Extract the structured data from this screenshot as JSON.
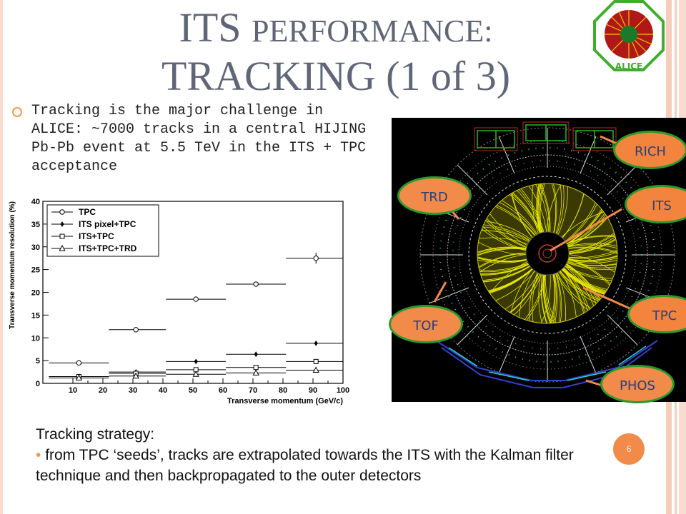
{
  "slide": {
    "title_line1_first": "ITS",
    "title_line1_rest": "PERFORMANCE:",
    "title_line2": "TRACKING (1 of 3)",
    "bullet": "Tracking is the major challenge in ALICE: ~7000 tracks in a central HIJING Pb-Pb event at 5.5 TeV in the ITS + TPC acceptance",
    "bottom_heading": "Tracking strategy:",
    "bottom_bullet": "from TPC ‘seeds’, tracks are extrapolated towards the ITS with the Kalman filter technique and then backpropagated to the outer detectors",
    "page_number": "6",
    "logo_text": "ALICE",
    "colors": {
      "title": "#5f6678",
      "accent": "#f28a4a",
      "stripe": "#f6cdb9"
    }
  },
  "detector_labels": {
    "rich": "RICH",
    "its": "ITS",
    "trd": "TRD",
    "tof": "TOF",
    "tpc": "TPC",
    "phos": "PHOS"
  },
  "chart_data": {
    "type": "scatter",
    "xlabel": "Transverse momentum (GeV/c)",
    "ylabel": "Transverse momentum resolution (%)",
    "xlim": [
      0,
      100
    ],
    "ylim": [
      0,
      40
    ],
    "xticks": [
      10,
      20,
      30,
      40,
      50,
      60,
      70,
      80,
      90,
      100
    ],
    "yticks": [
      0,
      5,
      10,
      15,
      20,
      25,
      30,
      35,
      40
    ],
    "legend_position": "top-left",
    "series": [
      {
        "name": "TPC",
        "marker": "circle",
        "points": [
          {
            "x": 12,
            "y": 4.5,
            "xlo": 2,
            "xhi": 22
          },
          {
            "x": 31,
            "y": 11.8,
            "xlo": 22,
            "xhi": 41
          },
          {
            "x": 51,
            "y": 18.5,
            "xlo": 41,
            "xhi": 61
          },
          {
            "x": 71,
            "y": 21.8,
            "xlo": 61,
            "xhi": 81
          },
          {
            "x": 91,
            "y": 27.5,
            "xlo": 81,
            "xhi": 100,
            "err": 1.2
          }
        ]
      },
      {
        "name": "ITS pixel+TPC",
        "marker": "diamond",
        "points": [
          {
            "x": 12,
            "y": 1.5,
            "xlo": 2,
            "xhi": 22
          },
          {
            "x": 31,
            "y": 2.5,
            "xlo": 22,
            "xhi": 41
          },
          {
            "x": 51,
            "y": 4.8,
            "xlo": 41,
            "xhi": 61
          },
          {
            "x": 71,
            "y": 6.4,
            "xlo": 61,
            "xhi": 81
          },
          {
            "x": 91,
            "y": 8.8,
            "xlo": 81,
            "xhi": 100
          }
        ]
      },
      {
        "name": "ITS+TPC",
        "marker": "square",
        "points": [
          {
            "x": 12,
            "y": 1.5,
            "xlo": 2,
            "xhi": 22
          },
          {
            "x": 31,
            "y": 2.2,
            "xlo": 22,
            "xhi": 41
          },
          {
            "x": 51,
            "y": 3.0,
            "xlo": 41,
            "xhi": 61
          },
          {
            "x": 71,
            "y": 3.5,
            "xlo": 61,
            "xhi": 81
          },
          {
            "x": 91,
            "y": 4.8,
            "xlo": 81,
            "xhi": 100
          }
        ]
      },
      {
        "name": "ITS+TPC+TRD",
        "marker": "triangle",
        "points": [
          {
            "x": 12,
            "y": 1.2,
            "xlo": 2,
            "xhi": 22
          },
          {
            "x": 31,
            "y": 1.6,
            "xlo": 22,
            "xhi": 41
          },
          {
            "x": 51,
            "y": 2.0,
            "xlo": 41,
            "xhi": 61
          },
          {
            "x": 71,
            "y": 2.3,
            "xlo": 61,
            "xhi": 81
          },
          {
            "x": 91,
            "y": 2.9,
            "xlo": 81,
            "xhi": 100
          }
        ]
      }
    ]
  }
}
